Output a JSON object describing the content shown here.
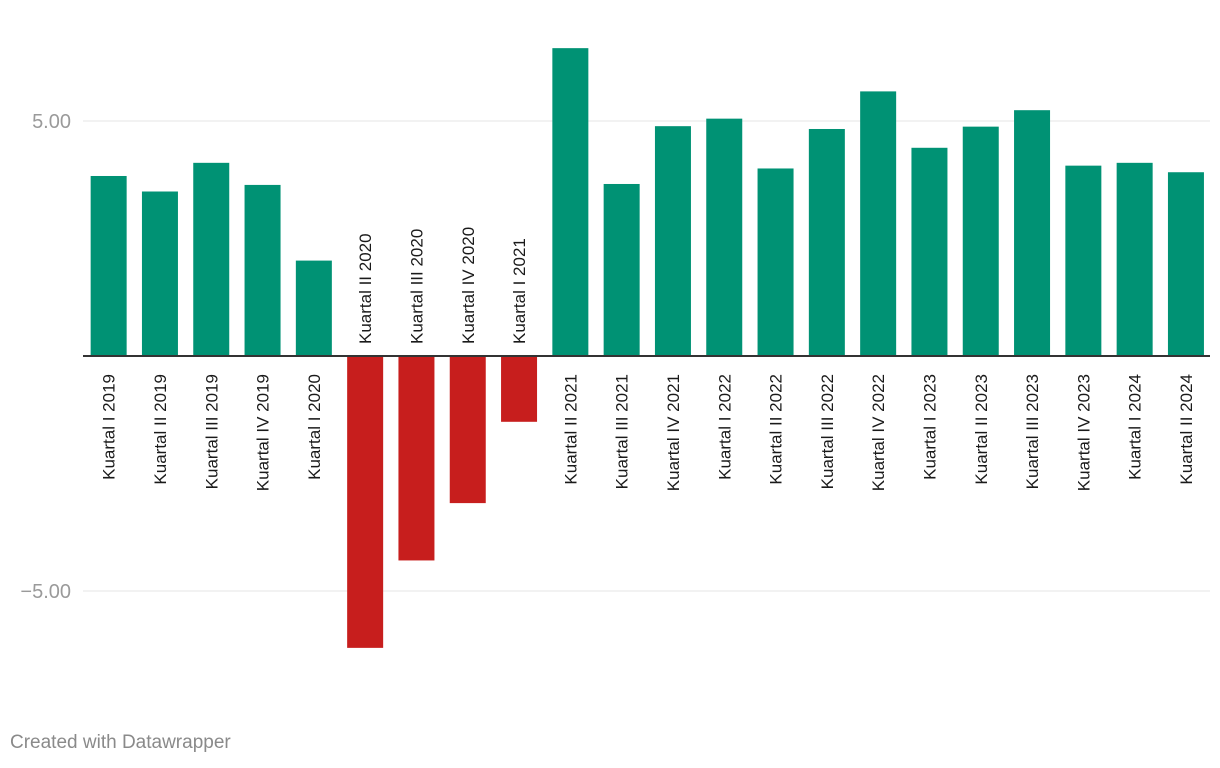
{
  "chart_data": {
    "type": "bar",
    "title": "",
    "xlabel": "",
    "ylabel": "",
    "categories": [
      "Kuartal I 2019",
      "Kuartal II 2019",
      "Kuartal III 2019",
      "Kuartal IV 2019",
      "Kuartal I 2020",
      "Kuartal II 2020",
      "Kuartal III 2020",
      "Kuartal IV 2020",
      "Kuartal I 2021",
      "Kuartal II 2021",
      "Kuartal III 2021",
      "Kuartal IV 2021",
      "Kuartal I 2022",
      "Kuartal II 2022",
      "Kuartal III 2022",
      "Kuartal IV 2022",
      "Kuartal I 2023",
      "Kuartal II 2023",
      "Kuartal III 2023",
      "Kuartal IV 2023",
      "Kuartal I 2024",
      "Kuartal II 2024"
    ],
    "values": [
      3.83,
      3.5,
      4.11,
      3.64,
      2.03,
      -6.21,
      -4.35,
      -3.13,
      -1.4,
      6.55,
      3.66,
      4.89,
      5.05,
      3.99,
      4.83,
      5.63,
      4.43,
      4.88,
      5.23,
      4.05,
      4.11,
      3.91
    ],
    "ylim": [
      -7,
      7
    ],
    "yticks": [
      5,
      -5
    ],
    "ytick_labels": [
      "5.00",
      "−5.00"
    ],
    "grid": true,
    "colors": {
      "positive": "#009274",
      "negative": "#c71e1d",
      "grid": "#e5e5e5",
      "baseline": "#333333"
    }
  },
  "footer": {
    "credit": "Created with Datawrapper"
  }
}
